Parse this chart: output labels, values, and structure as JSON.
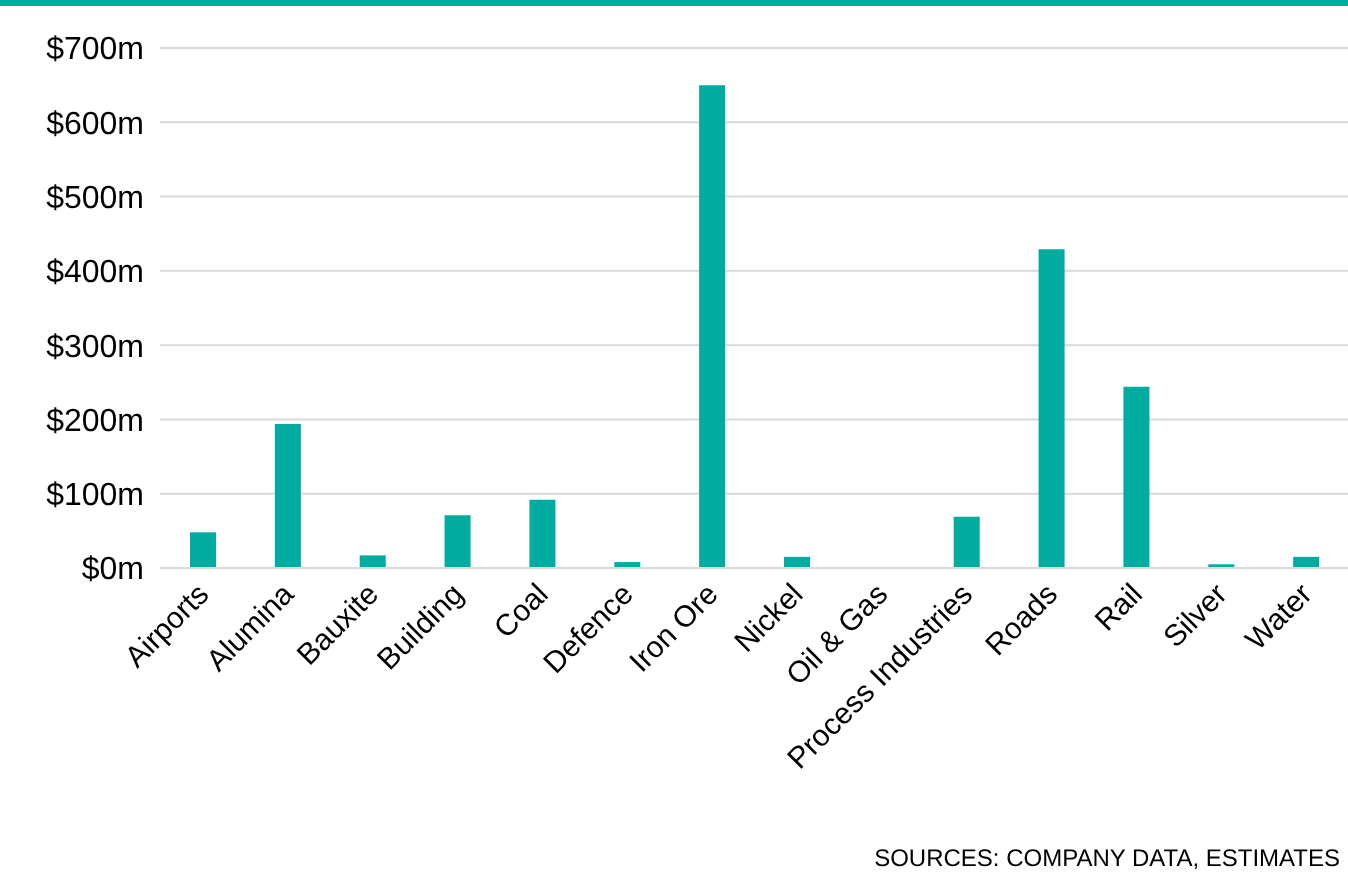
{
  "chart_data": {
    "type": "bar",
    "categories": [
      "Airports",
      "Alumina",
      "Bauxite",
      "Building",
      "Coal",
      "Defence",
      "Iron Ore",
      "Nickel",
      "Oil & Gas",
      "Process Industries",
      "Roads",
      "Rail",
      "Silver",
      "Water"
    ],
    "values": [
      48,
      194,
      17,
      71,
      92,
      8,
      650,
      15,
      0,
      69,
      429,
      244,
      5,
      15
    ],
    "color": "#00aba0",
    "ylim": [
      0,
      700
    ],
    "yticks": [
      {
        "value": 0,
        "label": "$0m"
      },
      {
        "value": 100,
        "label": "$100m"
      },
      {
        "value": 200,
        "label": "$200m"
      },
      {
        "value": 300,
        "label": "$300m"
      },
      {
        "value": 400,
        "label": "$400m"
      },
      {
        "value": 500,
        "label": "$500m"
      },
      {
        "value": 600,
        "label": "$600m"
      },
      {
        "value": 700,
        "label": "$700m"
      }
    ],
    "grid": "y",
    "annotations": [
      "SOURCES: COMPANY DATA, ESTIMATES"
    ]
  }
}
